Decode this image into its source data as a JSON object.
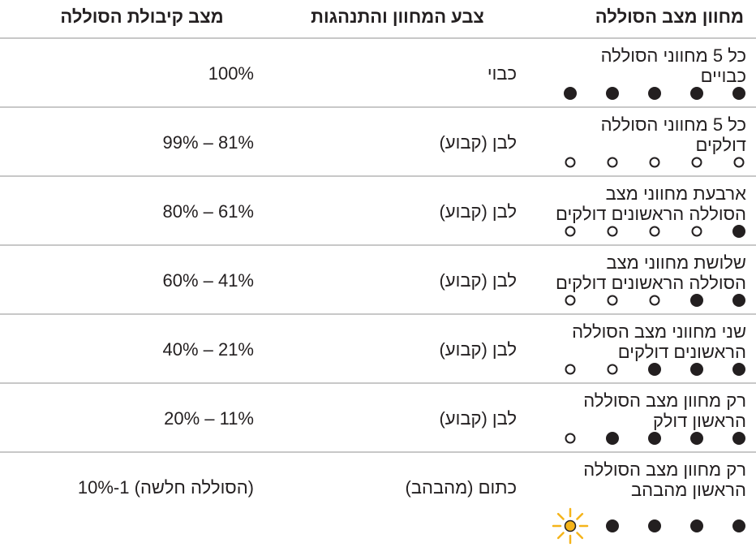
{
  "header": [
    "מחוון מצב הסוללה",
    "צבע המחוון והתנהגות",
    "מצב קיבולת הסוללה"
  ],
  "rows": [
    {
      "indicator": [
        "כל 5 מחווני הסוללה",
        "כבויים"
      ],
      "color": "כבוי",
      "capacity": "100%"
    },
    {
      "indicator": [
        "כל 5 מחווני הסוללה",
        "דולקים"
      ],
      "color": "לבן (קבוע)",
      "capacity": "99% – 81%"
    },
    {
      "indicator": [
        "ארבעת מחווני מצב",
        "הסוללה הראשונים דולקים"
      ],
      "color": "לבן (קבוע)",
      "capacity": "80% – 61%"
    },
    {
      "indicator": [
        "שלושת מחווני מצב",
        "הסוללה הראשונים דולקים"
      ],
      "color": "לבן (קבוע)",
      "capacity": "60% – 41%"
    },
    {
      "indicator": [
        "שני מחווני מצב הסוללה",
        "הראשונים דולקים"
      ],
      "color": "לבן (קבוע)",
      "capacity": "40% – 21%"
    },
    {
      "indicator": [
        "רק מחוון מצב הסוללה",
        "הראשון דולק"
      ],
      "color": "לבן (קבוע)",
      "capacity": "20% – 11%"
    },
    {
      "indicator": [
        "רק מחוון מצב הסוללה",
        "הראשון מהבהב"
      ],
      "color": "כתום (מהבהב)",
      "capacity": "10%-1 (הסוללה חלשה)"
    }
  ]
}
